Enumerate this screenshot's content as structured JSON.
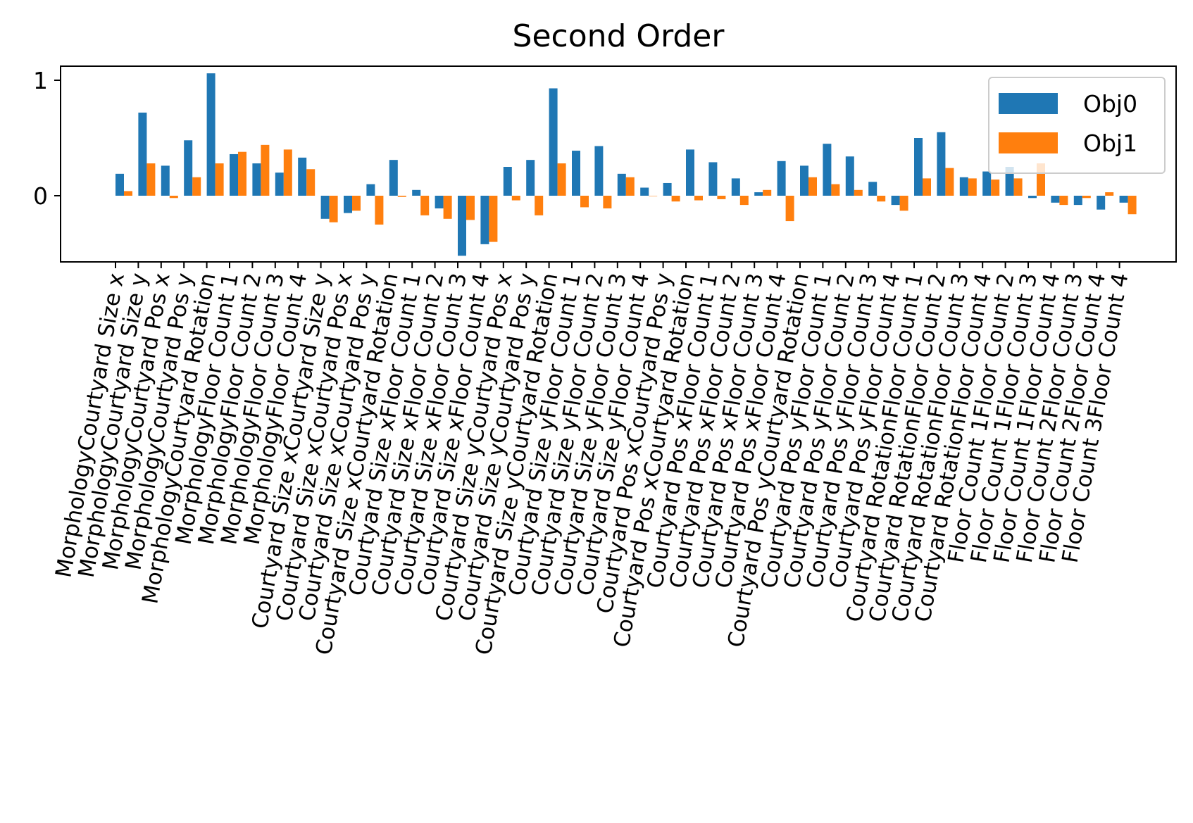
{
  "chart_data": {
    "type": "bar",
    "title": "Second Order",
    "xlabel": "",
    "ylabel": "",
    "ylim": [
      -0.6,
      1.12
    ],
    "yticks": [
      0,
      1
    ],
    "ytick_labels": [
      "0",
      "1"
    ],
    "grid": false,
    "legend_position": "top-right",
    "categories": [
      "MorphologyCourtyard Size x",
      "MorphologyCourtyard Size y",
      "MorphologyCourtyard Pos x",
      "MorphologyCourtyard Pos y",
      "MorphologyCourtyard Rotation",
      "MorphologyFloor Count 1",
      "MorphologyFloor Count 2",
      "MorphologyFloor Count 3",
      "MorphologyFloor Count 4",
      "Courtyard Size xCourtyard Size y",
      "Courtyard Size xCourtyard Pos x",
      "Courtyard Size xCourtyard Pos y",
      "Courtyard Size xCourtyard Rotation",
      "Courtyard Size xFloor Count 1",
      "Courtyard Size xFloor Count 2",
      "Courtyard Size xFloor Count 3",
      "Courtyard Size xFloor Count 4",
      "Courtyard Size yCourtyard Pos x",
      "Courtyard Size yCourtyard Pos y",
      "Courtyard Size yCourtyard Rotation",
      "Courtyard Size yFloor Count 1",
      "Courtyard Size yFloor Count 2",
      "Courtyard Size yFloor Count 3",
      "Courtyard Size yFloor Count 4",
      "Courtyard Pos xCourtyard Pos y",
      "Courtyard Pos xCourtyard Rotation",
      "Courtyard Pos xFloor Count 1",
      "Courtyard Pos xFloor Count 2",
      "Courtyard Pos xFloor Count 3",
      "Courtyard Pos xFloor Count 4",
      "Courtyard Pos yCourtyard Rotation",
      "Courtyard Pos yFloor Count 1",
      "Courtyard Pos yFloor Count 2",
      "Courtyard Pos yFloor Count 3",
      "Courtyard Pos yFloor Count 4",
      "Courtyard RotationFloor Count 1",
      "Courtyard RotationFloor Count 2",
      "Courtyard RotationFloor Count 3",
      "Courtyard RotationFloor Count 4",
      "Floor Count 1Floor Count 2",
      "Floor Count 1Floor Count 3",
      "Floor Count 1Floor Count 4",
      "Floor Count 2Floor Count 3",
      "Floor Count 2Floor Count 4",
      "Floor Count 3Floor Count 4"
    ],
    "series": [
      {
        "name": "Obj0",
        "color": "#1f77b4",
        "values": [
          0.19,
          0.72,
          0.26,
          0.48,
          1.06,
          0.36,
          0.28,
          0.2,
          0.33,
          -0.2,
          -0.15,
          0.1,
          0.31,
          0.05,
          -0.11,
          -0.52,
          -0.42,
          0.25,
          0.31,
          0.93,
          0.39,
          0.43,
          0.19,
          0.07,
          0.11,
          0.4,
          0.29,
          0.15,
          0.03,
          0.3,
          0.26,
          0.45,
          0.34,
          0.12,
          -0.08,
          0.5,
          0.55,
          0.16,
          0.21,
          0.25,
          -0.02,
          -0.06,
          -0.08,
          -0.12,
          -0.06
        ]
      },
      {
        "name": "Obj1",
        "color": "#ff7f0e",
        "values": [
          0.04,
          0.28,
          -0.02,
          0.16,
          0.28,
          0.38,
          0.44,
          0.4,
          0.23,
          -0.23,
          -0.13,
          -0.25,
          -0.01,
          -0.17,
          -0.2,
          -0.21,
          -0.4,
          -0.04,
          -0.17,
          0.28,
          -0.1,
          -0.11,
          0.16,
          0.0,
          -0.05,
          -0.04,
          -0.03,
          -0.08,
          0.05,
          -0.22,
          0.16,
          0.1,
          0.05,
          -0.05,
          -0.13,
          0.15,
          0.24,
          0.15,
          0.14,
          0.15,
          0.28,
          -0.08,
          -0.02,
          0.03,
          -0.16
        ]
      }
    ]
  }
}
